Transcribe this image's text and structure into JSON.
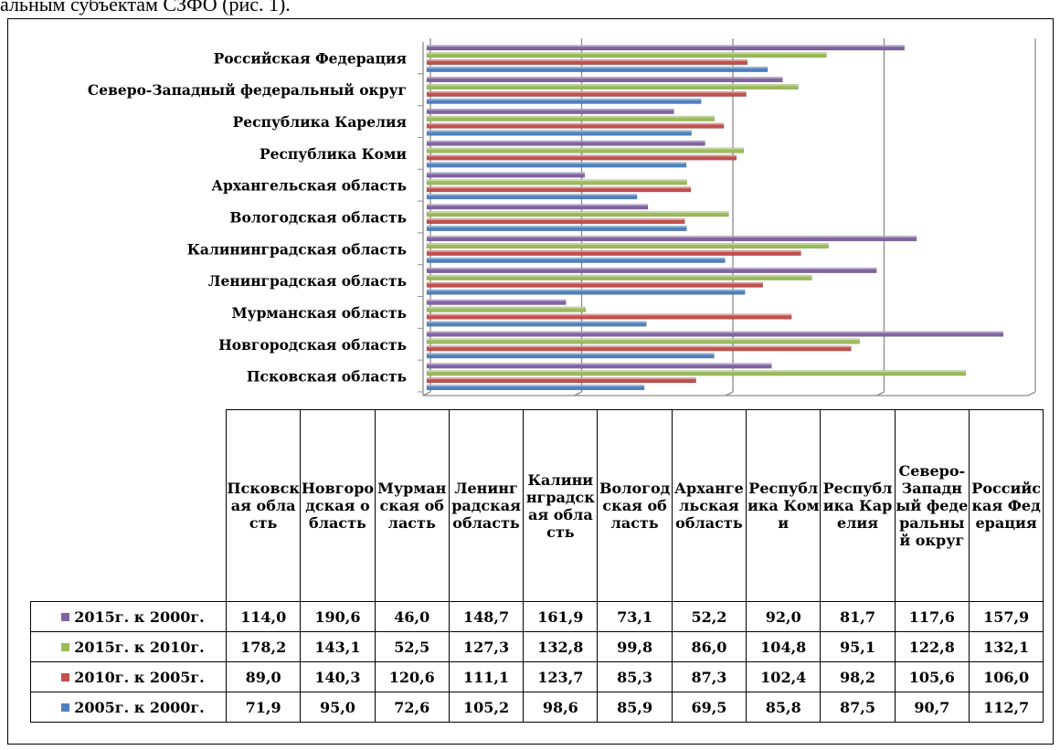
{
  "caption_fragment": "альным субъектам СЗФО (рис. 1).",
  "chart_data": {
    "type": "bar",
    "orientation": "horizontal",
    "categories": [
      "Псковская область",
      "Новгородская область",
      "Мурманская область",
      "Ленинградская область",
      "Калининградская область",
      "Вологодская область",
      "Архангельская область",
      "Республика Коми",
      "Республика Карелия",
      "Северо-Западный федеральный округ",
      "Российская Федерация"
    ],
    "table_headers": [
      "Псковская область",
      "Новгородская область",
      "Мурманская область",
      "Ленинградская область",
      "Калининградская область",
      "Вологодская область",
      "Архангельская область",
      "Республика Коми",
      "Республика Карелия",
      "Северо-Западный федеральный округ",
      "Российская Федерация"
    ],
    "series": [
      {
        "name": "2015г. к 2000г.",
        "color": "#8064a2",
        "values": [
          114.0,
          190.6,
          46.0,
          148.7,
          161.9,
          73.1,
          52.2,
          92.0,
          81.7,
          117.6,
          157.9
        ],
        "labels": [
          "114,0",
          "190,6",
          "46,0",
          "148,7",
          "161,9",
          "73,1",
          "52,2",
          "92,0",
          "81,7",
          "117,6",
          "157,9"
        ]
      },
      {
        "name": "2015г. к 2010г.",
        "color": "#9bbb59",
        "values": [
          178.2,
          143.1,
          52.5,
          127.3,
          132.8,
          99.8,
          86.0,
          104.8,
          95.1,
          122.8,
          132.1
        ],
        "labels": [
          "178,2",
          "143,1",
          "52,5",
          "127,3",
          "132,8",
          "99,8",
          "86,0",
          "104,8",
          "95,1",
          "122,8",
          "132,1"
        ]
      },
      {
        "name": "2010г. к 2005г.",
        "color": "#c0504d",
        "values": [
          89.0,
          140.3,
          120.6,
          111.1,
          123.7,
          85.3,
          87.3,
          102.4,
          98.2,
          105.6,
          106.0
        ],
        "labels": [
          "89,0",
          "140,3",
          "120,6",
          "111,1",
          "123,7",
          "85,3",
          "87,3",
          "102,4",
          "98,2",
          "105,6",
          "106,0"
        ]
      },
      {
        "name": "2005г. к 2000г.",
        "color": "#4f81bd",
        "values": [
          71.9,
          95.0,
          72.6,
          105.2,
          98.6,
          85.9,
          69.5,
          85.8,
          87.5,
          90.7,
          112.7
        ],
        "labels": [
          "71,9",
          "95,0",
          "72,6",
          "105,2",
          "98,6",
          "85,9",
          "69,5",
          "85,8",
          "87,5",
          "90,7",
          "112,7"
        ]
      }
    ],
    "xlim": [
      0,
      200
    ],
    "grid": true,
    "legend": "table-left"
  }
}
